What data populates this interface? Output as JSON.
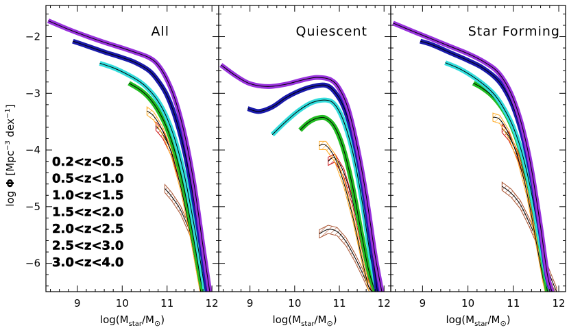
{
  "figure": {
    "ylabel": "log Φ [Mpc⁻³ dex⁻¹]",
    "xlabel": "log(M_star/M_⊙)"
  },
  "chart_data": [
    {
      "type": "line",
      "panel_title": "All",
      "xlim": [
        8.3,
        12.15
      ],
      "ylim": [
        -6.5,
        -1.45
      ],
      "xticks": [
        9,
        10,
        11,
        12
      ],
      "yticks": [
        -2,
        -3,
        -4,
        -5,
        -6
      ],
      "legend_placement": "lower-left",
      "series": [
        {
          "name": "0.2<z<0.5",
          "color": "#9933dd",
          "style": "band",
          "x": [
            8.35,
            8.8,
            9.2,
            9.6,
            10.0,
            10.3,
            10.6,
            10.8,
            11.0,
            11.2,
            11.4,
            11.6,
            11.8,
            11.95
          ],
          "y": [
            -1.72,
            -1.87,
            -1.99,
            -2.1,
            -2.2,
            -2.28,
            -2.37,
            -2.5,
            -2.76,
            -3.16,
            -3.76,
            -4.6,
            -5.7,
            -6.5
          ]
        },
        {
          "name": "0.5<z<1.0",
          "color": "#1a1aaa",
          "style": "band",
          "x": [
            8.9,
            9.2,
            9.6,
            10.0,
            10.3,
            10.6,
            10.8,
            11.0,
            11.2,
            11.4,
            11.6,
            11.8,
            11.9
          ],
          "y": [
            -2.08,
            -2.16,
            -2.27,
            -2.37,
            -2.46,
            -2.6,
            -2.78,
            -3.04,
            -3.46,
            -4.06,
            -4.9,
            -5.9,
            -6.5
          ]
        },
        {
          "name": "1.0<z<1.5",
          "color": "#33dddd",
          "style": "band",
          "x": [
            9.5,
            9.8,
            10.1,
            10.4,
            10.6,
            10.8,
            11.0,
            11.2,
            11.4,
            11.6,
            11.75,
            11.85
          ],
          "y": [
            -2.47,
            -2.55,
            -2.66,
            -2.8,
            -2.94,
            -3.14,
            -3.44,
            -3.88,
            -4.5,
            -5.32,
            -6.0,
            -6.5
          ]
        },
        {
          "name": "1.5<z<2.0",
          "color": "#22bb22",
          "style": "band",
          "x": [
            10.15,
            10.4,
            10.6,
            10.8,
            11.0,
            11.2,
            11.4,
            11.6,
            11.75,
            11.82
          ],
          "y": [
            -2.82,
            -2.94,
            -3.08,
            -3.3,
            -3.62,
            -4.1,
            -4.76,
            -5.6,
            -6.3,
            -6.5
          ]
        },
        {
          "name": "2.0<z<2.5",
          "color": "#ffaa22",
          "style": "hatch",
          "x": [
            10.55,
            10.7,
            10.9,
            11.1,
            11.3,
            11.5,
            11.65,
            11.75
          ],
          "y": [
            -3.31,
            -3.4,
            -3.66,
            -4.06,
            -4.64,
            -5.4,
            -6.06,
            -6.5
          ]
        },
        {
          "name": "2.5<z<3.0",
          "color": "#cc1111",
          "style": "hatch",
          "x": [
            10.75,
            10.9,
            11.1,
            11.3,
            11.5,
            11.65,
            11.78
          ],
          "y": [
            -3.58,
            -3.72,
            -4.04,
            -4.56,
            -5.3,
            -5.96,
            -6.5
          ]
        },
        {
          "name": "3.0<z<4.0",
          "color": "#aa5533",
          "style": "hatch",
          "x": [
            10.95,
            11.1,
            11.3,
            11.5,
            11.65,
            11.8,
            11.9
          ],
          "y": [
            -4.68,
            -4.82,
            -5.06,
            -5.42,
            -5.76,
            -6.12,
            -6.4
          ]
        }
      ]
    },
    {
      "type": "line",
      "panel_title": "Quiescent",
      "xlim": [
        8.3,
        12.15
      ],
      "ylim": [
        -6.5,
        -1.45
      ],
      "xticks": [
        9,
        10,
        11,
        12
      ],
      "yticks": [
        -2,
        -3,
        -4,
        -5,
        -6
      ],
      "series": [
        {
          "name": "0.2<z<0.5",
          "color": "#9933dd",
          "style": "band",
          "x": [
            8.35,
            8.7,
            9.0,
            9.4,
            9.8,
            10.2,
            10.5,
            10.8,
            11.0,
            11.2,
            11.4,
            11.6,
            11.8,
            11.95
          ],
          "y": [
            -2.5,
            -2.7,
            -2.83,
            -2.88,
            -2.84,
            -2.76,
            -2.72,
            -2.76,
            -2.92,
            -3.28,
            -3.94,
            -4.8,
            -5.86,
            -6.5
          ]
        },
        {
          "name": "0.5<z<1.0",
          "color": "#1a1aaa",
          "style": "band",
          "x": [
            8.95,
            9.2,
            9.5,
            9.8,
            10.1,
            10.4,
            10.7,
            10.9,
            11.1,
            11.3,
            11.5,
            11.7,
            11.85
          ],
          "y": [
            -3.27,
            -3.32,
            -3.24,
            -3.08,
            -2.96,
            -2.88,
            -2.86,
            -2.98,
            -3.24,
            -3.74,
            -4.5,
            -5.56,
            -6.5
          ]
        },
        {
          "name": "1.0<z<1.5",
          "color": "#33dddd",
          "style": "band",
          "x": [
            9.5,
            9.8,
            10.1,
            10.4,
            10.7,
            10.9,
            11.1,
            11.3,
            11.5,
            11.7,
            11.85
          ],
          "y": [
            -3.73,
            -3.5,
            -3.3,
            -3.16,
            -3.12,
            -3.2,
            -3.5,
            -4.04,
            -4.86,
            -5.9,
            -6.5
          ]
        },
        {
          "name": "1.5<z<2.0",
          "color": "#22bb22",
          "style": "band",
          "x": [
            10.12,
            10.3,
            10.5,
            10.7,
            10.9,
            11.1,
            11.3,
            11.5,
            11.65,
            11.8
          ],
          "y": [
            -3.65,
            -3.52,
            -3.44,
            -3.44,
            -3.6,
            -4.0,
            -4.66,
            -5.5,
            -6.1,
            -6.5
          ]
        },
        {
          "name": "2.0<z<2.5",
          "color": "#ffaa22",
          "style": "hatch",
          "x": [
            10.55,
            10.7,
            10.9,
            11.1,
            11.3,
            11.5,
            11.65,
            11.75
          ],
          "y": [
            -3.92,
            -3.92,
            -4.14,
            -4.58,
            -5.18,
            -5.9,
            -6.4,
            -6.5
          ]
        },
        {
          "name": "2.5<z<3.0",
          "color": "#cc1111",
          "style": "hatch",
          "x": [
            10.75,
            10.9,
            11.1,
            11.3,
            11.5,
            11.65,
            11.75
          ],
          "y": [
            -4.2,
            -4.14,
            -4.4,
            -4.92,
            -5.66,
            -6.2,
            -6.5
          ]
        },
        {
          "name": "3.0<z<4.0",
          "color": "#aa5533",
          "style": "hatch",
          "x": [
            10.55,
            10.75,
            10.95,
            11.15,
            11.35,
            11.5,
            11.65,
            11.75
          ],
          "y": [
            -5.48,
            -5.4,
            -5.44,
            -5.62,
            -5.9,
            -6.14,
            -6.4,
            -6.5
          ]
        }
      ]
    },
    {
      "type": "line",
      "panel_title": "Star Forming",
      "xlim": [
        8.3,
        12.15
      ],
      "ylim": [
        -6.5,
        -1.45
      ],
      "xticks": [
        9,
        10,
        11,
        12
      ],
      "yticks": [
        -2,
        -3,
        -4,
        -5,
        -6
      ],
      "series": [
        {
          "name": "0.2<z<0.5",
          "color": "#9933dd",
          "style": "band",
          "x": [
            8.35,
            8.8,
            9.2,
            9.6,
            10.0,
            10.3,
            10.6,
            10.8,
            11.0,
            11.2,
            11.4,
            11.6,
            11.75,
            11.85
          ],
          "y": [
            -1.76,
            -1.91,
            -2.04,
            -2.17,
            -2.3,
            -2.42,
            -2.58,
            -2.78,
            -3.1,
            -3.6,
            -4.34,
            -5.36,
            -6.2,
            -6.5
          ]
        },
        {
          "name": "0.5<z<1.0",
          "color": "#1a1aaa",
          "style": "band",
          "x": [
            8.95,
            9.2,
            9.6,
            10.0,
            10.3,
            10.6,
            10.8,
            11.0,
            11.2,
            11.4,
            11.6,
            11.75,
            11.85
          ],
          "y": [
            -2.08,
            -2.14,
            -2.28,
            -2.42,
            -2.54,
            -2.72,
            -2.92,
            -3.24,
            -3.74,
            -4.46,
            -5.46,
            -6.26,
            -6.5
          ]
        },
        {
          "name": "1.0<z<1.5",
          "color": "#33dddd",
          "style": "band",
          "x": [
            9.5,
            9.8,
            10.1,
            10.4,
            10.6,
            10.8,
            11.0,
            11.2,
            11.4,
            11.6,
            11.75,
            11.85
          ],
          "y": [
            -2.46,
            -2.56,
            -2.7,
            -2.88,
            -3.04,
            -3.28,
            -3.6,
            -4.08,
            -4.76,
            -5.66,
            -6.3,
            -6.5
          ]
        },
        {
          "name": "1.5<z<2.0",
          "color": "#22bb22",
          "style": "band",
          "x": [
            10.12,
            10.3,
            10.5,
            10.7,
            10.9,
            11.1,
            11.3,
            11.5,
            11.65,
            11.75
          ],
          "y": [
            -2.82,
            -2.9,
            -3.02,
            -3.2,
            -3.46,
            -3.86,
            -4.44,
            -5.24,
            -5.96,
            -6.5
          ]
        },
        {
          "name": "2.0<z<2.5",
          "color": "#ffaa22",
          "style": "hatch",
          "x": [
            10.55,
            10.7,
            10.9,
            11.1,
            11.3,
            11.5,
            11.65,
            11.72
          ],
          "y": [
            -3.42,
            -3.46,
            -3.72,
            -4.14,
            -4.76,
            -5.6,
            -6.26,
            -6.5
          ]
        },
        {
          "name": "2.5<z<3.0",
          "color": "#cc1111",
          "style": "hatch",
          "x": [
            10.75,
            10.9,
            11.1,
            11.3,
            11.5,
            11.65,
            11.75
          ],
          "y": [
            -3.62,
            -3.76,
            -4.1,
            -4.62,
            -5.36,
            -6.02,
            -6.5
          ]
        },
        {
          "name": "3.0<z<4.0",
          "color": "#aa5533",
          "style": "hatch",
          "x": [
            10.75,
            10.95,
            11.15,
            11.35,
            11.5,
            11.65,
            11.8,
            11.95
          ],
          "y": [
            -4.64,
            -4.76,
            -4.96,
            -5.28,
            -5.56,
            -5.86,
            -6.2,
            -6.5
          ]
        }
      ]
    }
  ]
}
